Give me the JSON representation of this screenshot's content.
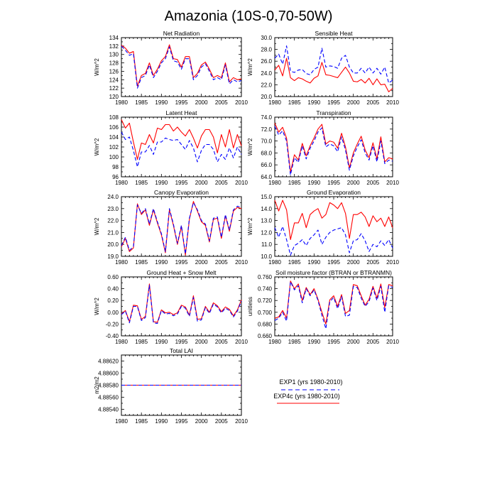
{
  "title": "Amazonia (10S-0,70-50W)",
  "legend": [
    {
      "label": "EXP1 (yrs 1980-2010)",
      "color": "#0000ff",
      "dash": "dash"
    },
    {
      "label": "EXP4c (yrs 1980-2010)",
      "color": "#ff0000",
      "dash": "solid"
    }
  ],
  "chart_data": [
    {
      "type": "line",
      "title": "Net Radiation",
      "ylabel": "W/m^2",
      "ylim": [
        120,
        134
      ],
      "yticks": [
        120,
        122,
        124,
        126,
        128,
        130,
        132,
        134
      ],
      "ytick_labels": [
        "120",
        "122",
        "124",
        "126",
        "128",
        "130",
        "132",
        "134"
      ],
      "xlim": [
        1980,
        2010
      ],
      "xticks": [
        1980,
        1985,
        1990,
        1995,
        2000,
        2005,
        2010
      ],
      "series": [
        {
          "name": "EXP4c",
          "color": "#ff0000",
          "values": [
            132.2,
            131.5,
            130.3,
            130.7,
            122.5,
            125.0,
            125.5,
            128.0,
            125.0,
            126.5,
            128.5,
            129.5,
            132.3,
            129.0,
            128.8,
            127.0,
            129.5,
            129.5,
            124.5,
            125.5,
            127.5,
            128.2,
            126.5,
            124.5,
            125.0,
            124.5,
            128.0,
            123.5,
            124.5,
            124.0,
            124.2
          ]
        },
        {
          "name": "EXP1",
          "color": "#0000ff",
          "values": [
            132.0,
            131.0,
            129.8,
            130.2,
            122.0,
            124.5,
            125.0,
            127.5,
            124.5,
            126.0,
            128.0,
            129.0,
            131.8,
            128.5,
            128.2,
            126.5,
            129.0,
            129.0,
            124.0,
            125.0,
            127.0,
            127.8,
            126.0,
            124.0,
            124.5,
            124.0,
            127.5,
            123.0,
            124.0,
            123.5,
            123.8
          ]
        }
      ]
    },
    {
      "type": "line",
      "title": "Sensible Heat",
      "ylabel": "W/m^2",
      "ylim": [
        20,
        30
      ],
      "yticks": [
        20,
        22,
        24,
        26,
        28,
        30
      ],
      "ytick_labels": [
        "20.0",
        "22.0",
        "24.0",
        "26.0",
        "28.0",
        "30.0"
      ],
      "xlim": [
        1980,
        2010
      ],
      "xticks": [
        1980,
        1985,
        1990,
        1995,
        2000,
        2005,
        2010
      ],
      "series": [
        {
          "name": "EXP4c",
          "color": "#ff0000",
          "values": [
            24.5,
            25.3,
            23.5,
            26.5,
            23.2,
            22.7,
            23.2,
            23.0,
            22.6,
            22.3,
            23.1,
            23.5,
            25.8,
            23.7,
            23.6,
            23.4,
            23.2,
            24.1,
            25.0,
            24.0,
            22.6,
            22.5,
            22.9,
            22.3,
            23.1,
            22.0,
            23.0,
            22.0,
            22.1,
            20.8,
            21.4
          ]
        },
        {
          "name": "EXP1",
          "color": "#0000ff",
          "values": [
            26.5,
            27.2,
            25.5,
            28.6,
            24.3,
            24.1,
            24.5,
            24.6,
            23.9,
            23.7,
            24.6,
            25.0,
            28.2,
            25.0,
            25.2,
            25.1,
            24.8,
            26.5,
            27.0,
            25.0,
            24.0,
            24.0,
            24.8,
            24.0,
            25.0,
            24.0,
            24.8,
            23.8,
            25.0,
            22.3,
            22.8
          ]
        }
      ]
    },
    {
      "type": "line",
      "title": "Latent Heat",
      "ylabel": "W/m^2",
      "ylim": [
        96,
        108
      ],
      "yticks": [
        96,
        98,
        100,
        102,
        104,
        106,
        108
      ],
      "ytick_labels": [
        "96",
        "98",
        "100",
        "102",
        "104",
        "106",
        "108"
      ],
      "xlim": [
        1980,
        2010
      ],
      "xticks": [
        1980,
        1985,
        1990,
        1995,
        2000,
        2005,
        2010
      ],
      "series": [
        {
          "name": "EXP4c",
          "color": "#ff0000",
          "values": [
            107.5,
            105.8,
            106.8,
            103.0,
            99.5,
            102.8,
            102.5,
            104.5,
            102.8,
            105.8,
            105.5,
            106.5,
            106.5,
            105.2,
            106.0,
            105.0,
            104.2,
            105.5,
            103.8,
            101.8,
            104.2,
            105.5,
            105.5,
            104.0,
            100.8,
            104.5,
            102.0,
            105.5,
            101.8,
            104.5,
            102.2
          ]
        },
        {
          "name": "EXP1",
          "color": "#0000ff",
          "values": [
            105.0,
            103.5,
            104.0,
            101.3,
            98.0,
            101.0,
            101.0,
            102.3,
            100.5,
            103.0,
            103.0,
            103.8,
            103.5,
            103.3,
            103.5,
            102.5,
            101.5,
            103.3,
            101.8,
            99.0,
            101.3,
            102.5,
            102.5,
            101.5,
            99.0,
            100.5,
            99.5,
            101.8,
            99.8,
            102.0,
            100.5
          ]
        }
      ]
    },
    {
      "type": "line",
      "title": "Transpiration",
      "ylabel": "W/m^2",
      "ylim": [
        64,
        74
      ],
      "yticks": [
        64,
        66,
        68,
        70,
        72,
        74
      ],
      "ytick_labels": [
        "64.0",
        "66.0",
        "68.0",
        "70.0",
        "72.0",
        "74.0"
      ],
      "xlim": [
        1980,
        2010
      ],
      "xticks": [
        1980,
        1985,
        1990,
        1995,
        2000,
        2005,
        2010
      ],
      "series": [
        {
          "name": "EXP4c",
          "color": "#ff0000",
          "values": [
            73.0,
            71.5,
            72.3,
            70.5,
            64.8,
            67.7,
            66.8,
            69.6,
            67.5,
            69.2,
            70.5,
            72.0,
            72.8,
            69.5,
            70.0,
            69.8,
            68.8,
            71.3,
            69.0,
            65.5,
            68.0,
            69.5,
            70.8,
            68.5,
            67.2,
            69.7,
            67.0,
            70.7,
            66.5,
            67.2,
            67.0
          ]
        },
        {
          "name": "EXP1",
          "color": "#0000ff",
          "values": [
            72.5,
            71.0,
            71.7,
            70.0,
            64.3,
            67.2,
            66.4,
            69.2,
            67.0,
            68.8,
            70.0,
            71.5,
            72.2,
            69.0,
            69.5,
            69.2,
            68.2,
            70.7,
            68.5,
            65.1,
            67.5,
            69.0,
            70.2,
            68.0,
            66.8,
            69.2,
            66.5,
            70.0,
            66.2,
            66.8,
            66.6
          ]
        }
      ]
    },
    {
      "type": "line",
      "title": "Canopy Evaporation",
      "ylabel": "W/m^2",
      "ylim": [
        19,
        24
      ],
      "yticks": [
        19,
        20,
        21,
        22,
        23,
        24
      ],
      "ytick_labels": [
        "19.0",
        "20.0",
        "21.0",
        "22.0",
        "23.0",
        "24.0"
      ],
      "xlim": [
        1980,
        2010
      ],
      "xticks": [
        1980,
        1985,
        1990,
        1995,
        2000,
        2005,
        2010
      ],
      "series": [
        {
          "name": "EXP4c",
          "color": "#ff0000",
          "values": [
            19.8,
            20.5,
            19.4,
            19.7,
            23.4,
            22.5,
            22.9,
            21.6,
            22.9,
            21.8,
            20.8,
            19.3,
            22.9,
            21.6,
            20.0,
            21.5,
            19.1,
            22.1,
            23.6,
            22.8,
            21.9,
            21.6,
            20.2,
            22.1,
            22.2,
            20.5,
            22.4,
            21.1,
            22.8,
            23.1,
            23.0
          ]
        },
        {
          "name": "EXP1",
          "color": "#0000ff",
          "values": [
            19.9,
            20.6,
            19.5,
            19.8,
            23.3,
            22.6,
            23.0,
            21.7,
            23.0,
            21.9,
            20.9,
            19.4,
            23.0,
            21.7,
            20.1,
            21.6,
            19.2,
            22.2,
            23.5,
            22.9,
            22.0,
            21.7,
            20.3,
            22.2,
            22.3,
            20.6,
            22.5,
            21.2,
            22.9,
            23.2,
            23.1
          ]
        }
      ]
    },
    {
      "type": "line",
      "title": "Ground Evaporation",
      "ylabel": "W/m^2",
      "ylim": [
        10,
        15
      ],
      "yticks": [
        10,
        11,
        12,
        13,
        14,
        15
      ],
      "ytick_labels": [
        "10.0",
        "11.0",
        "12.0",
        "13.0",
        "14.0",
        "15.0"
      ],
      "xlim": [
        1980,
        2010
      ],
      "xticks": [
        1980,
        1985,
        1990,
        1995,
        2000,
        2005,
        2010
      ],
      "series": [
        {
          "name": "EXP4c",
          "color": "#ff0000",
          "values": [
            14.7,
            13.8,
            14.7,
            13.9,
            11.4,
            12.8,
            12.8,
            13.6,
            12.4,
            13.5,
            13.8,
            14.0,
            13.2,
            13.5,
            14.5,
            14.3,
            14.0,
            14.5,
            13.6,
            11.5,
            13.5,
            13.5,
            13.7,
            13.3,
            12.5,
            13.4,
            12.9,
            13.2,
            12.5,
            13.3,
            12.4
          ]
        },
        {
          "name": "EXP1",
          "color": "#0000ff",
          "values": [
            12.4,
            11.6,
            12.5,
            11.4,
            10.1,
            10.9,
            11.1,
            11.4,
            10.9,
            11.5,
            11.8,
            12.2,
            11.0,
            11.6,
            12.0,
            12.2,
            12.3,
            12.4,
            11.8,
            10.3,
            11.3,
            11.4,
            11.9,
            11.3,
            10.4,
            11.0,
            10.8,
            11.3,
            10.9,
            11.4,
            10.7
          ]
        }
      ]
    },
    {
      "type": "line",
      "title": "Ground Heat + Snow Melt",
      "ylabel": "W/m^2",
      "ylim": [
        -0.4,
        0.6
      ],
      "yticks": [
        -0.4,
        -0.2,
        0.0,
        0.2,
        0.4,
        0.6
      ],
      "ytick_labels": [
        "-0.40",
        "-0.20",
        "0.00",
        "0.20",
        "0.40",
        "0.60"
      ],
      "xlim": [
        1980,
        2010
      ],
      "xticks": [
        1980,
        1985,
        1990,
        1995,
        2000,
        2005,
        2010
      ],
      "series": [
        {
          "name": "EXP4c",
          "color": "#ff0000",
          "values": [
            -0.03,
            0.03,
            -0.16,
            0.12,
            0.11,
            -0.12,
            -0.07,
            0.48,
            -0.16,
            -0.17,
            0.04,
            -0.01,
            0.0,
            -0.04,
            -0.01,
            0.12,
            0.09,
            -0.05,
            0.28,
            -0.12,
            -0.11,
            0.1,
            0.0,
            0.16,
            0.11,
            0.01,
            0.09,
            0.05,
            -0.06,
            0.04,
            0.21
          ]
        },
        {
          "name": "EXP1",
          "color": "#0000ff",
          "values": [
            -0.04,
            0.02,
            -0.18,
            0.1,
            0.1,
            -0.14,
            -0.09,
            0.46,
            -0.18,
            -0.19,
            0.03,
            -0.03,
            -0.02,
            -0.06,
            -0.03,
            0.1,
            0.07,
            -0.07,
            0.25,
            -0.15,
            -0.13,
            0.08,
            -0.02,
            0.14,
            0.09,
            -0.01,
            0.07,
            0.03,
            -0.08,
            0.02,
            0.19
          ]
        }
      ]
    },
    {
      "type": "line",
      "title": "Soil moisture factor (BTRAN or BTRANMN)",
      "ylabel": "unitless",
      "ylim": [
        0.66,
        0.76
      ],
      "yticks": [
        0.66,
        0.68,
        0.7,
        0.72,
        0.74,
        0.76
      ],
      "ytick_labels": [
        "0.660",
        "0.680",
        "0.700",
        "0.720",
        "0.740",
        "0.760"
      ],
      "xlim": [
        1980,
        2010
      ],
      "xticks": [
        1980,
        1985,
        1990,
        1995,
        2000,
        2005,
        2010
      ],
      "series": [
        {
          "name": "EXP4c",
          "color": "#ff0000",
          "values": [
            0.69,
            0.692,
            0.703,
            0.69,
            0.753,
            0.74,
            0.748,
            0.72,
            0.742,
            0.73,
            0.74,
            0.722,
            0.7,
            0.68,
            0.721,
            0.728,
            0.71,
            0.73,
            0.698,
            0.703,
            0.747,
            0.745,
            0.728,
            0.712,
            0.722,
            0.744,
            0.724,
            0.748,
            0.708,
            0.747,
            0.745
          ]
        },
        {
          "name": "EXP1",
          "color": "#0000ff",
          "values": [
            0.686,
            0.69,
            0.7,
            0.685,
            0.752,
            0.738,
            0.745,
            0.716,
            0.74,
            0.728,
            0.738,
            0.72,
            0.695,
            0.672,
            0.718,
            0.725,
            0.706,
            0.727,
            0.693,
            0.695,
            0.744,
            0.742,
            0.724,
            0.71,
            0.718,
            0.741,
            0.72,
            0.744,
            0.7,
            0.745,
            0.742
          ]
        }
      ]
    },
    {
      "type": "line",
      "title": "Total LAI",
      "ylabel": "m2/m2",
      "ylim": [
        4.8853,
        4.8863
      ],
      "yticks": [
        4.8854,
        4.8856,
        4.8858,
        4.886,
        4.8862
      ],
      "ytick_labels": [
        "4.88540",
        "4.88560",
        "4.88580",
        "4.88600",
        "4.88620"
      ],
      "xlim": [
        1980,
        2010
      ],
      "xticks": [
        1980,
        1985,
        1990,
        1995,
        2000,
        2005,
        2010
      ],
      "series": [
        {
          "name": "EXP4c",
          "color": "#ff0000",
          "values": [
            4.8858,
            4.8858
          ]
        },
        {
          "name": "EXP1",
          "color": "#0000ff",
          "values": [
            4.8858,
            4.8858
          ]
        }
      ],
      "x_values": [
        1980,
        2010
      ]
    }
  ]
}
